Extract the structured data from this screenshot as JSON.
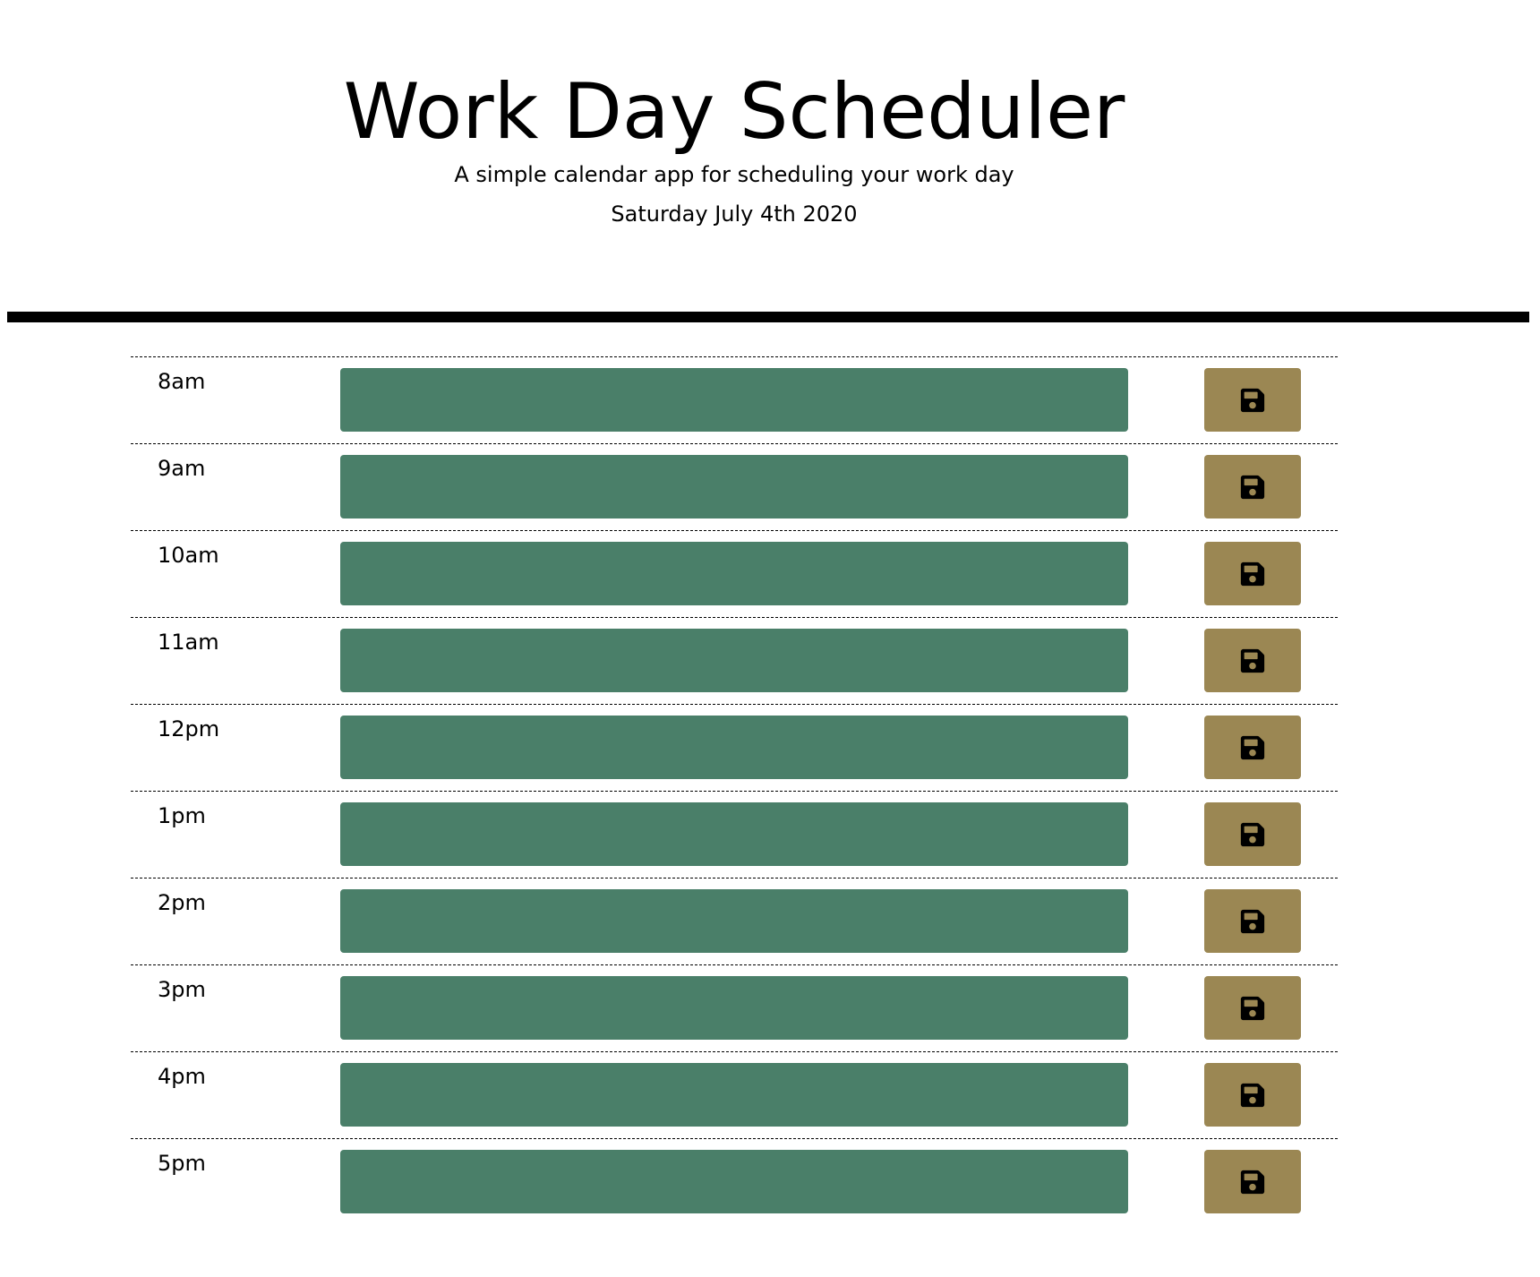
{
  "header": {
    "title": "Work Day Scheduler",
    "subtitle": "A simple calendar app for scheduling your work day",
    "current_day": "Saturday July 4th 2020"
  },
  "colors": {
    "description_bg": "#4a7f69",
    "save_button_bg": "#9b8753",
    "divider": "#000000"
  },
  "time_blocks": [
    {
      "hour": "8am",
      "description": "",
      "save_icon": "floppy-disk-icon"
    },
    {
      "hour": "9am",
      "description": "",
      "save_icon": "floppy-disk-icon"
    },
    {
      "hour": "10am",
      "description": "",
      "save_icon": "floppy-disk-icon"
    },
    {
      "hour": "11am",
      "description": "",
      "save_icon": "floppy-disk-icon"
    },
    {
      "hour": "12pm",
      "description": "",
      "save_icon": "floppy-disk-icon"
    },
    {
      "hour": "1pm",
      "description": "",
      "save_icon": "floppy-disk-icon"
    },
    {
      "hour": "2pm",
      "description": "",
      "save_icon": "floppy-disk-icon"
    },
    {
      "hour": "3pm",
      "description": "",
      "save_icon": "floppy-disk-icon"
    },
    {
      "hour": "4pm",
      "description": "",
      "save_icon": "floppy-disk-icon"
    },
    {
      "hour": "5pm",
      "description": "",
      "save_icon": "floppy-disk-icon"
    }
  ]
}
